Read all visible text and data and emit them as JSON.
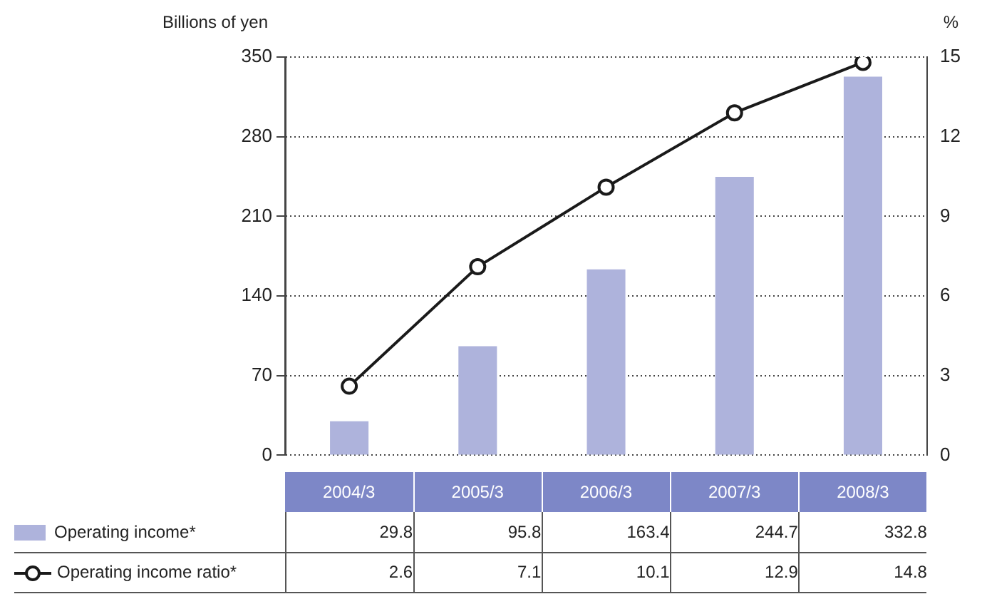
{
  "chart_data": {
    "type": "bar",
    "ylabel": "Billions of yen",
    "y2label": "%",
    "categories": [
      "2004/3",
      "2005/3",
      "2006/3",
      "2007/3",
      "2008/3"
    ],
    "series": [
      {
        "name": "Operating income*",
        "color": "#aeb3dc",
        "values": [
          29.8,
          95.8,
          163.4,
          244.7,
          332.8
        ]
      },
      {
        "name": "Operating income ratio*",
        "type": "line",
        "axis": "y2",
        "color": "#1a1a1a",
        "marker": "circle",
        "values": [
          2.6,
          7.1,
          10.1,
          12.9,
          14.8
        ]
      }
    ],
    "ylim": [
      0,
      350
    ],
    "yticks": [
      0,
      70,
      140,
      210,
      280,
      350
    ],
    "y2lim": [
      0,
      15
    ],
    "y2ticks": [
      0,
      3,
      6,
      9,
      12,
      15
    ],
    "grid": "y",
    "legend": "bottom",
    "data_labels": true
  }
}
